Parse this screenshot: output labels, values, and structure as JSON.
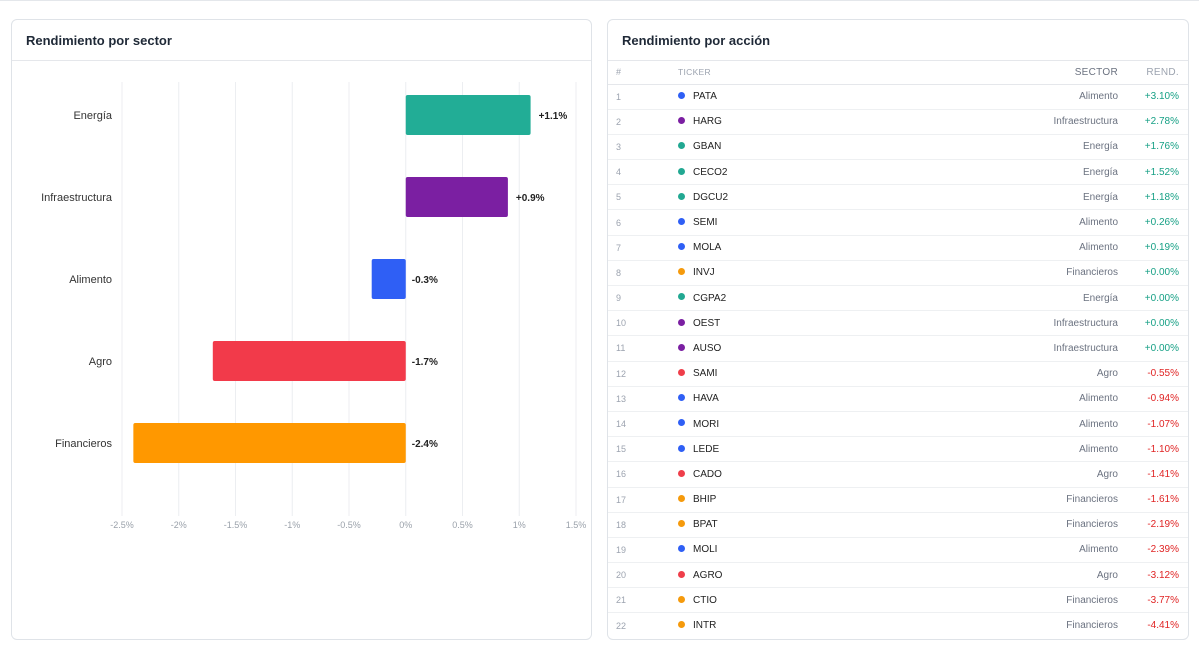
{
  "sector_panel": {
    "title": "Rendimiento por sector"
  },
  "accion_panel": {
    "title": "Rendimiento por acción",
    "columns": {
      "num": "#",
      "ticker": "TICKER",
      "sector": "SECTOR",
      "rend": "REND."
    },
    "rows": [
      {
        "num": "1",
        "ticker": "PATA",
        "sector": "Alimento",
        "rend": "+3.10%",
        "color": "#2f5ff5",
        "sign": "pos"
      },
      {
        "num": "2",
        "ticker": "HARG",
        "sector": "Infraestructura",
        "rend": "+2.78%",
        "color": "#7b1fa2",
        "sign": "pos"
      },
      {
        "num": "3",
        "ticker": "GBAN",
        "sector": "Energía",
        "rend": "+1.76%",
        "color": "#22a892",
        "sign": "pos"
      },
      {
        "num": "4",
        "ticker": "CECO2",
        "sector": "Energía",
        "rend": "+1.52%",
        "color": "#22a892",
        "sign": "pos"
      },
      {
        "num": "5",
        "ticker": "DGCU2",
        "sector": "Energía",
        "rend": "+1.18%",
        "color": "#22a892",
        "sign": "pos"
      },
      {
        "num": "6",
        "ticker": "SEMI",
        "sector": "Alimento",
        "rend": "+0.26%",
        "color": "#2f5ff5",
        "sign": "pos"
      },
      {
        "num": "7",
        "ticker": "MOLA",
        "sector": "Alimento",
        "rend": "+0.19%",
        "color": "#2f5ff5",
        "sign": "pos"
      },
      {
        "num": "8",
        "ticker": "INVJ",
        "sector": "Financieros",
        "rend": "+0.00%",
        "color": "#f59a0c",
        "sign": "pos"
      },
      {
        "num": "9",
        "ticker": "CGPA2",
        "sector": "Energía",
        "rend": "+0.00%",
        "color": "#22a892",
        "sign": "pos"
      },
      {
        "num": "10",
        "ticker": "OEST",
        "sector": "Infraestructura",
        "rend": "+0.00%",
        "color": "#7b1fa2",
        "sign": "pos"
      },
      {
        "num": "11",
        "ticker": "AUSO",
        "sector": "Infraestructura",
        "rend": "+0.00%",
        "color": "#7b1fa2",
        "sign": "pos"
      },
      {
        "num": "12",
        "ticker": "SAMI",
        "sector": "Agro",
        "rend": "-0.55%",
        "color": "#ef3e4a",
        "sign": "neg"
      },
      {
        "num": "13",
        "ticker": "HAVA",
        "sector": "Alimento",
        "rend": "-0.94%",
        "color": "#2f5ff5",
        "sign": "neg"
      },
      {
        "num": "14",
        "ticker": "MORI",
        "sector": "Alimento",
        "rend": "-1.07%",
        "color": "#2f5ff5",
        "sign": "neg"
      },
      {
        "num": "15",
        "ticker": "LEDE",
        "sector": "Alimento",
        "rend": "-1.10%",
        "color": "#2f5ff5",
        "sign": "neg"
      },
      {
        "num": "16",
        "ticker": "CADO",
        "sector": "Agro",
        "rend": "-1.41%",
        "color": "#ef3e4a",
        "sign": "neg"
      },
      {
        "num": "17",
        "ticker": "BHIP",
        "sector": "Financieros",
        "rend": "-1.61%",
        "color": "#f59a0c",
        "sign": "neg"
      },
      {
        "num": "18",
        "ticker": "BPAT",
        "sector": "Financieros",
        "rend": "-2.19%",
        "color": "#f59a0c",
        "sign": "neg"
      },
      {
        "num": "19",
        "ticker": "MOLI",
        "sector": "Alimento",
        "rend": "-2.39%",
        "color": "#2f5ff5",
        "sign": "neg"
      },
      {
        "num": "20",
        "ticker": "AGRO",
        "sector": "Agro",
        "rend": "-3.12%",
        "color": "#ef3e4a",
        "sign": "neg"
      },
      {
        "num": "21",
        "ticker": "CTIO",
        "sector": "Financieros",
        "rend": "-3.77%",
        "color": "#f59a0c",
        "sign": "neg"
      },
      {
        "num": "22",
        "ticker": "INTR",
        "sector": "Financieros",
        "rend": "-4.41%",
        "color": "#f59a0c",
        "sign": "neg"
      }
    ]
  },
  "chart_data": {
    "type": "bar",
    "orientation": "horizontal",
    "title": "Rendimiento por sector",
    "categories": [
      "Energía",
      "Infraestructura",
      "Alimento",
      "Agro",
      "Financieros"
    ],
    "values": [
      1.1,
      0.9,
      -0.3,
      -1.7,
      -2.4
    ],
    "value_labels": [
      "+1.1%",
      "+0.9%",
      "-0.3%",
      "-1.7%",
      "-2.4%"
    ],
    "colors": [
      "#22ad96",
      "#7b1fa2",
      "#2f5ff5",
      "#f23a4a",
      "#ff9800"
    ],
    "xlim": [
      -2.5,
      1.5
    ],
    "xticks": [
      -2.5,
      -2,
      -1.5,
      -1,
      -0.5,
      0,
      0.5,
      1,
      1.5
    ],
    "xtick_labels": [
      "-2.5%",
      "-2%",
      "-1.5%",
      "-1%",
      "-0.5%",
      "0%",
      "0.5%",
      "1%",
      "1.5%"
    ],
    "grid": true,
    "xlabel": "",
    "ylabel": ""
  },
  "colors": {
    "positive": "#16a085",
    "negative": "#e02424"
  }
}
